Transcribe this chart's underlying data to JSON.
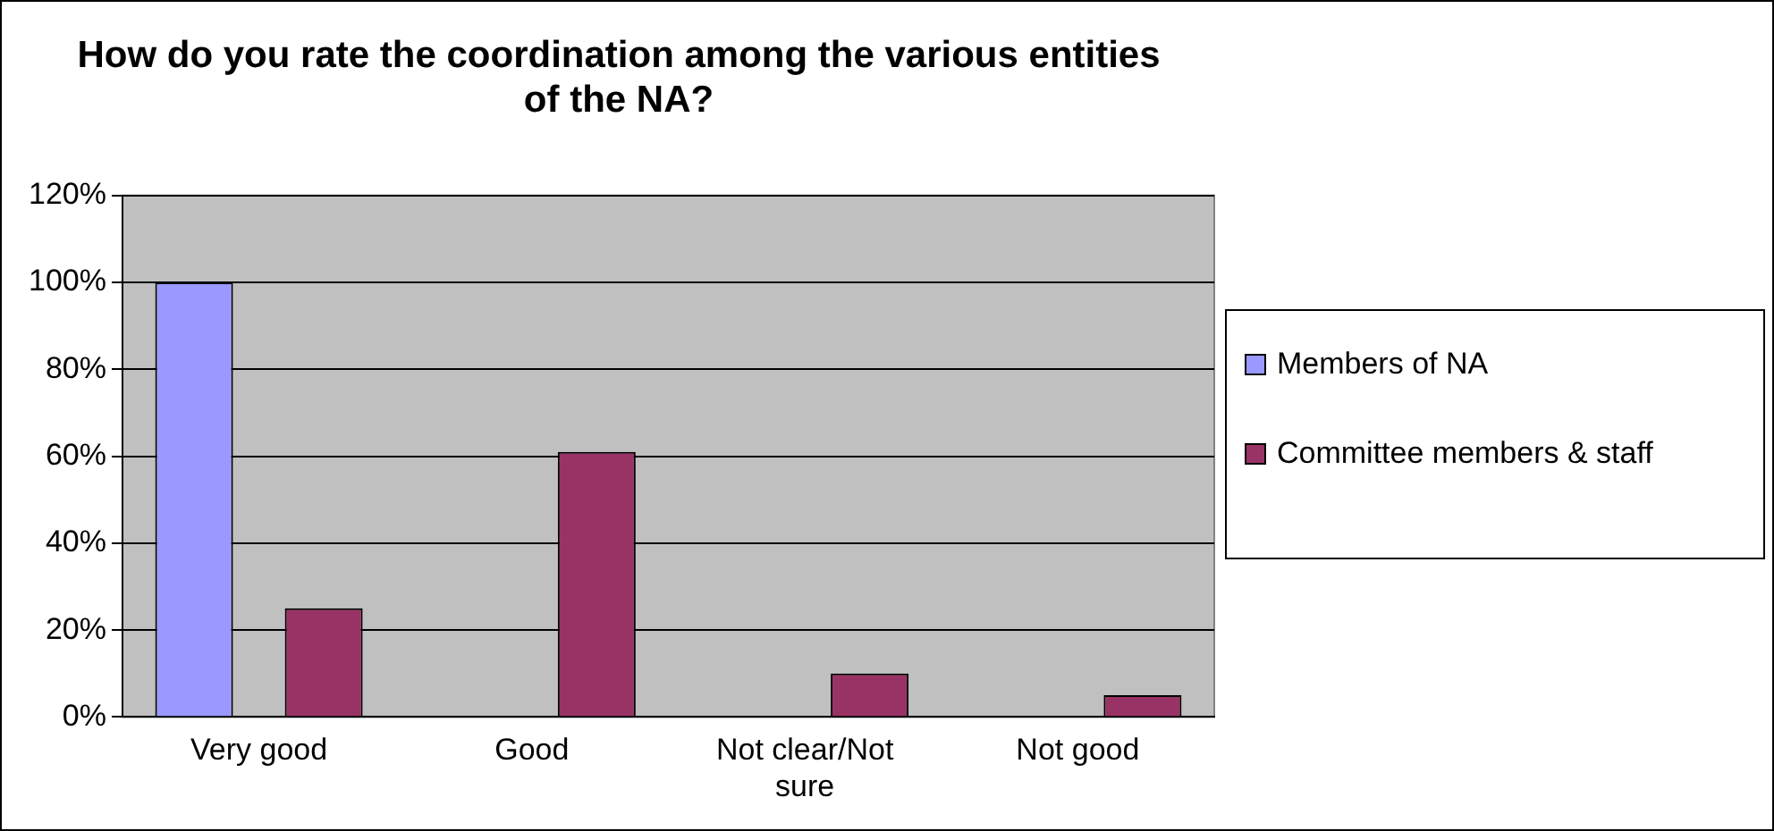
{
  "chart_data": {
    "type": "bar",
    "title": "How do you rate the coordination among the various entities of the NA?",
    "categories": [
      "Very good",
      "Good",
      "Not clear/Not sure",
      "Not good"
    ],
    "series": [
      {
        "name": "Members of NA",
        "color": "#9999ff",
        "values": [
          100,
          0,
          0,
          0
        ]
      },
      {
        "name": "Committee members & staff",
        "color": "#993366",
        "values": [
          25,
          61,
          10,
          5
        ]
      }
    ],
    "ylim": [
      0,
      120
    ],
    "yticks": [
      {
        "value": 0,
        "label": "0%"
      },
      {
        "value": 20,
        "label": "20%"
      },
      {
        "value": 40,
        "label": "40%"
      },
      {
        "value": 60,
        "label": "60%"
      },
      {
        "value": 80,
        "label": "80%"
      },
      {
        "value": 100,
        "label": "100%"
      },
      {
        "value": 120,
        "label": "120%"
      }
    ],
    "grid": "y",
    "legend": "right"
  }
}
